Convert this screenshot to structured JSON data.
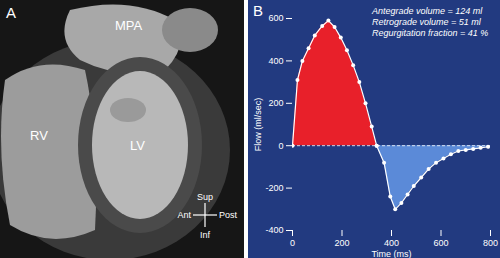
{
  "panel_a": {
    "label": "A",
    "structures": [
      "MPA",
      "RV",
      "LV"
    ],
    "orientation": {
      "up": "Sup",
      "down": "Inf",
      "left": "Ant",
      "right": "Post"
    }
  },
  "chart_data": {
    "type": "area",
    "panel_label": "B",
    "x_label": "Time (ms)",
    "y_label": "Flow (ml/sec)",
    "annotations": [
      "Antegrade volume = 124 ml",
      "Retrograde volume = 51 ml",
      "Regurgitation fraction = 41 %"
    ],
    "xlim": [
      0,
      800
    ],
    "xticks": [
      0,
      200,
      400,
      600,
      800
    ],
    "ylim": [
      -400,
      600
    ],
    "yticks": [
      -400,
      -200,
      0,
      200,
      400,
      600
    ],
    "marker": "circle",
    "series": [
      {
        "color": "#e8202a",
        "x": [
          0,
          20,
          40,
          65,
          90,
          120,
          145,
          170,
          195,
          220,
          245,
          270,
          295,
          320,
          340
        ],
        "values": [
          0,
          310,
          400,
          460,
          520,
          565,
          590,
          560,
          510,
          450,
          380,
          300,
          200,
          90,
          0
        ]
      },
      {
        "color": "#5b8ad8",
        "x": [
          340,
          370,
          395,
          415,
          440,
          465,
          490,
          520,
          550,
          580,
          610,
          640,
          670,
          700,
          730,
          760,
          790
        ],
        "values": [
          0,
          -80,
          -240,
          -300,
          -270,
          -230,
          -190,
          -150,
          -110,
          -80,
          -60,
          -40,
          -25,
          -20,
          -15,
          -10,
          -5
        ]
      }
    ]
  }
}
